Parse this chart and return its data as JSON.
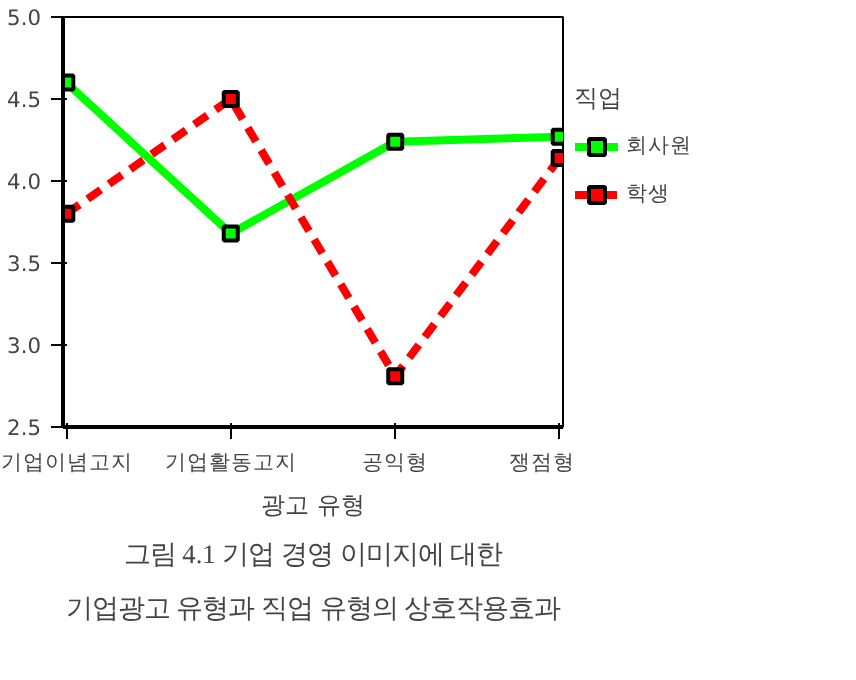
{
  "chart_data": {
    "type": "line",
    "categories": [
      "기업이념고지",
      "기업활동고지",
      "공익형",
      "쟁점형"
    ],
    "xlabel": "광고 유형",
    "legend_title": "직업",
    "ylim": [
      2.5,
      5.0
    ],
    "yticks": [
      2.5,
      {
        "value": 3,
        "label": "3.0"
      },
      3.5,
      {
        "value": 4,
        "label": "4.0"
      },
      4.5,
      {
        "value": 5,
        "label": "5.0"
      }
    ],
    "series": [
      {
        "name": "회사원",
        "color": "#00ff00",
        "line_style": "solid",
        "values": [
          4.6,
          3.68,
          4.24,
          4.27
        ]
      },
      {
        "name": "학생",
        "color": "#ff0000",
        "line_style": "dashed",
        "values": [
          3.8,
          4.5,
          2.81,
          4.14
        ]
      }
    ],
    "marker": "square",
    "grid": false,
    "legend": "right",
    "annotations": [
      "그림 4.1 기업 경영 이미지에 대한 기업광고 유형과 직업 유형의 상호작용효과"
    ]
  }
}
